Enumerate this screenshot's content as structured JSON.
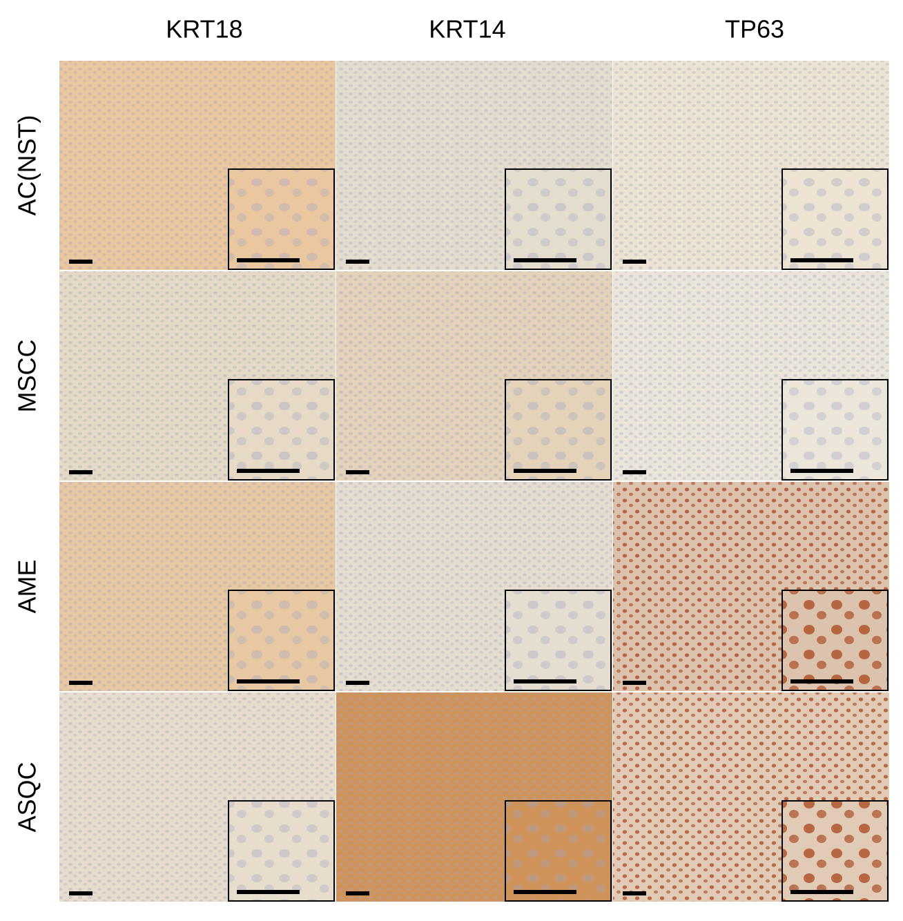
{
  "columns": [
    "KRT18",
    "KRT14",
    "TP63"
  ],
  "rows": [
    "AC(NST)",
    "MSCC",
    "AME",
    "ASQC"
  ]
}
